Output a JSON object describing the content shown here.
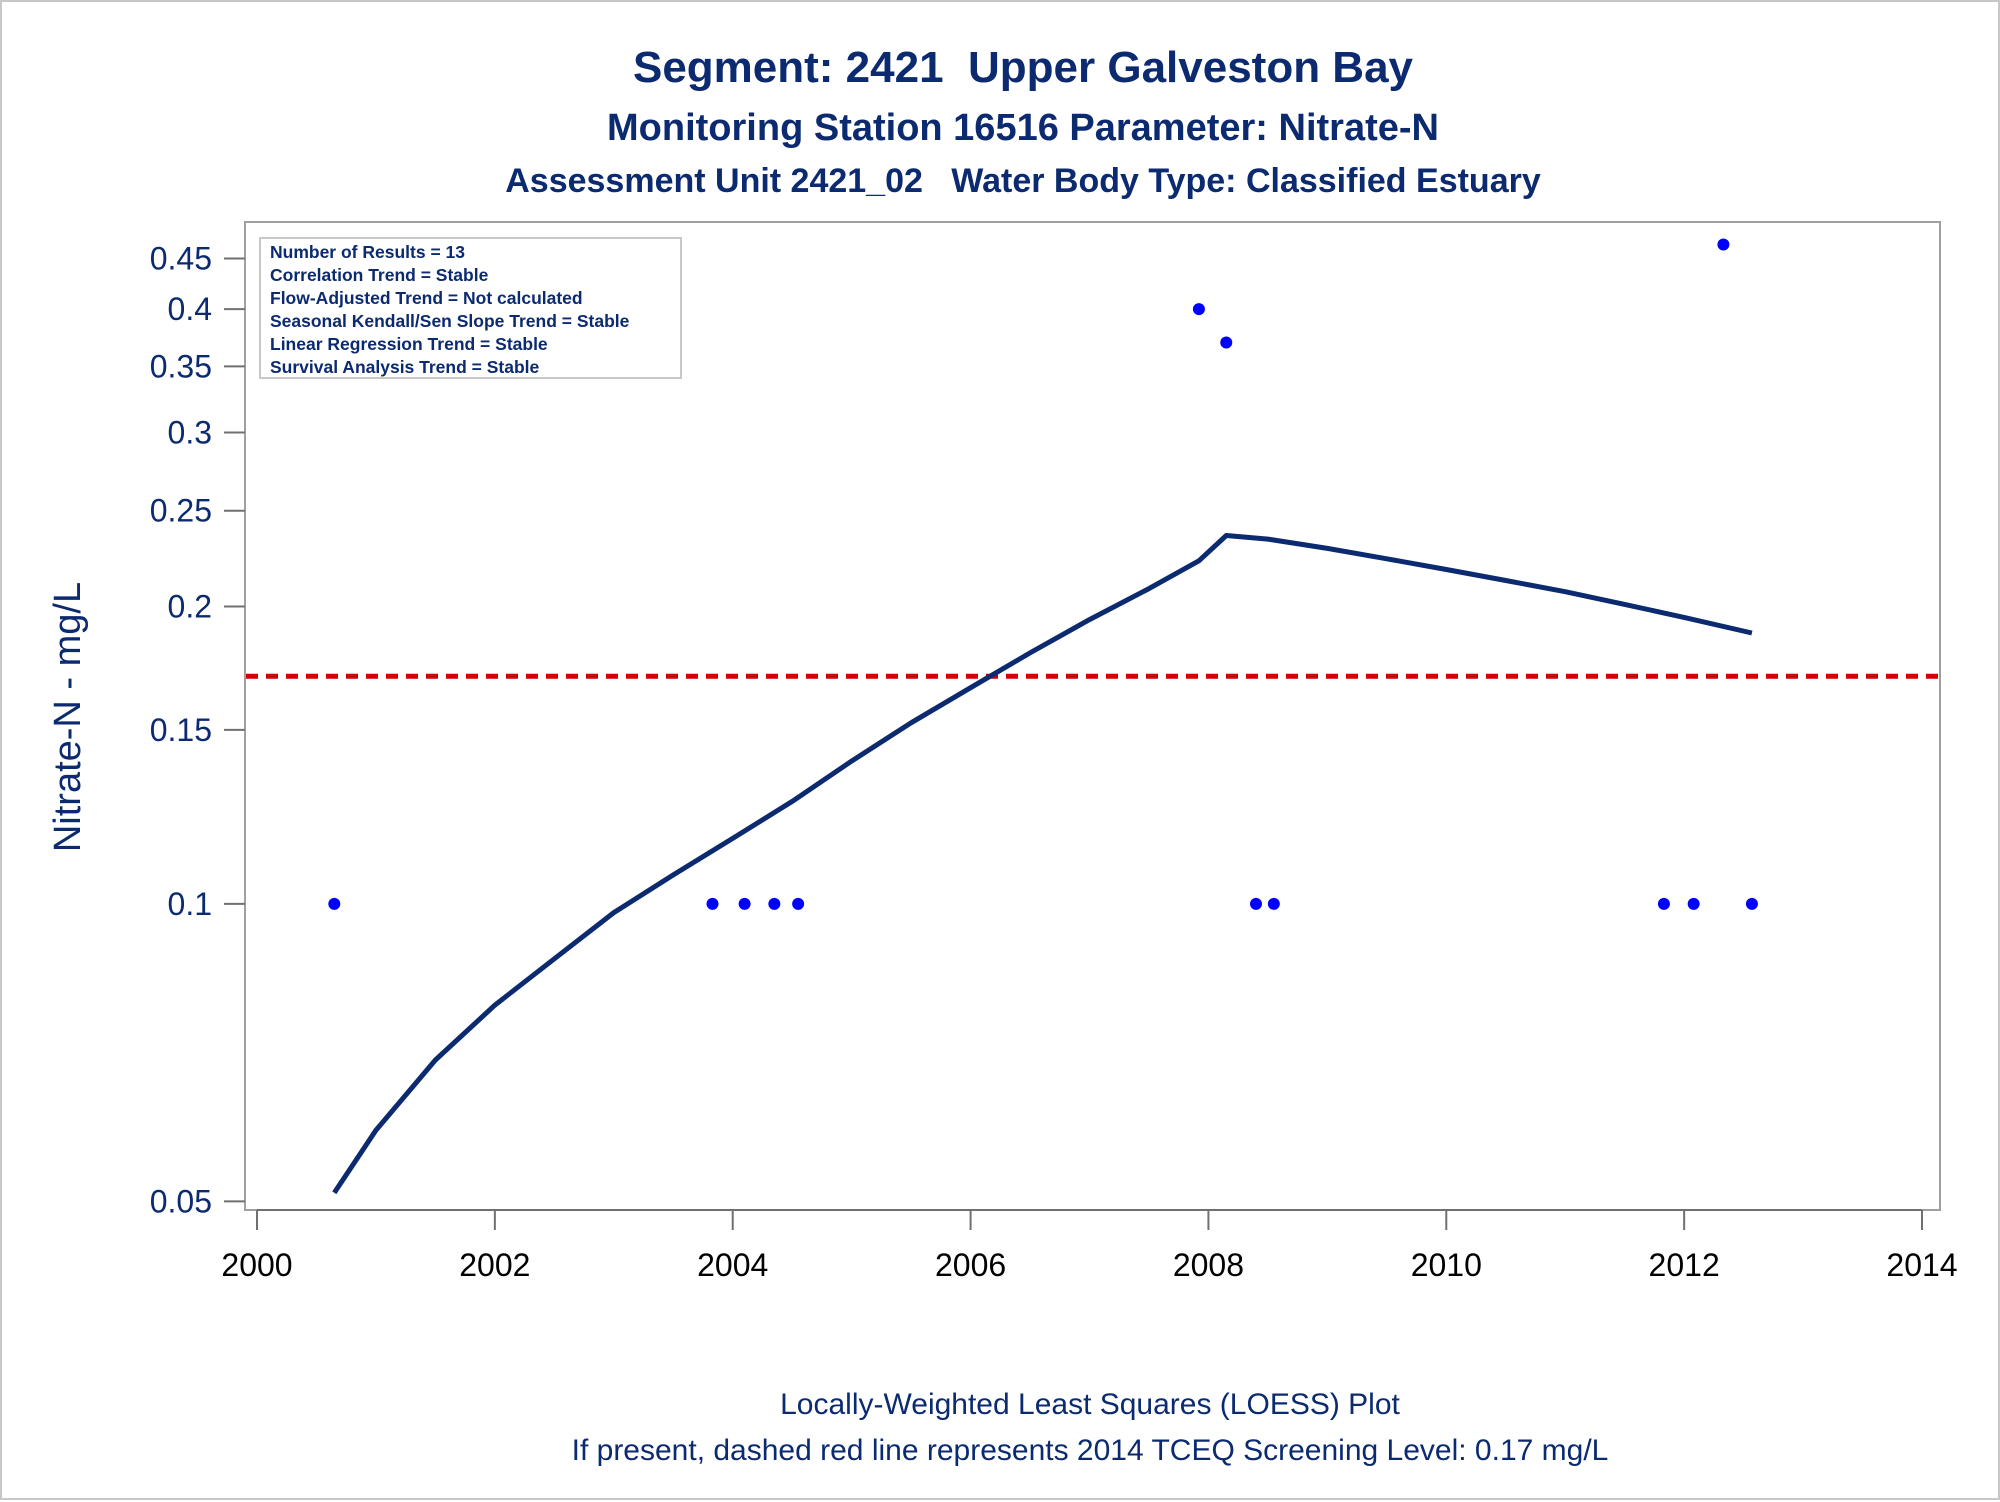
{
  "chart_data": {
    "type": "scatter",
    "title": "Segment: 2421  Upper Galveston Bay",
    "subtitle": "Monitoring Station 16516 Parameter: Nitrate-N",
    "subtitle2": "Assessment Unit 2421_02   Water Body Type: Classified Estuary",
    "xlabel": "",
    "ylabel": "Nitrate-N - mg/L",
    "footnote1": "Locally-Weighted Least Squares (LOESS) Plot",
    "footnote2": "If present, dashed red line represents 2014 TCEQ Screening Level: 0.17 mg/L",
    "xlim": [
      2000,
      2014
    ],
    "ylim": [
      0.049,
      0.49
    ],
    "y_scale": "log",
    "x_ticks": [
      2000,
      2002,
      2004,
      2006,
      2008,
      2010,
      2012,
      2014
    ],
    "x_tick_labels": [
      "2000",
      "2002",
      "2004",
      "2006",
      "2008",
      "2010",
      "2012",
      "2014"
    ],
    "y_ticks": [
      0.05,
      0.1,
      0.15,
      0.2,
      0.25,
      0.3,
      0.35,
      0.4,
      0.45
    ],
    "y_tick_labels": [
      "0.05",
      "0.1",
      "0.15",
      "0.2",
      "0.25",
      "0.3",
      "0.35",
      "0.4",
      "0.45"
    ],
    "grid": false,
    "points": {
      "x": [
        2000.65,
        2003.83,
        2004.1,
        2004.35,
        2004.55,
        2007.92,
        2008.15,
        2008.4,
        2008.55,
        2011.83,
        2012.08,
        2012.33,
        2012.57
      ],
      "y": [
        0.1,
        0.1,
        0.1,
        0.1,
        0.1,
        0.4,
        0.37,
        0.1,
        0.1,
        0.1,
        0.1,
        0.465,
        0.1
      ],
      "color": "#0000ff"
    },
    "loess_line": {
      "x": [
        2000.65,
        2001.0,
        2001.5,
        2002.0,
        2002.5,
        2003.0,
        2003.5,
        2004.0,
        2004.5,
        2005.0,
        2005.5,
        2006.0,
        2006.5,
        2007.0,
        2007.5,
        2007.92,
        2008.15,
        2008.5,
        2009.0,
        2009.5,
        2010.0,
        2010.5,
        2011.0,
        2011.5,
        2012.0,
        2012.57
      ],
      "y": [
        0.051,
        0.059,
        0.0695,
        0.079,
        0.088,
        0.098,
        0.107,
        0.1165,
        0.127,
        0.1395,
        0.1525,
        0.1655,
        0.1795,
        0.194,
        0.2085,
        0.2225,
        0.236,
        0.234,
        0.229,
        0.2235,
        0.218,
        0.2125,
        0.207,
        0.201,
        0.195,
        0.188
      ],
      "color": "#0b2a6f"
    },
    "screening_level": {
      "y": 0.17,
      "color": "#d40000",
      "style": "dashed"
    },
    "stats_box": {
      "placement": "top-left",
      "lines": [
        "Number of Results = 13",
        "Correlation Trend = Stable",
        "Flow-Adjusted Trend = Not calculated",
        "Seasonal Kendall/Sen Slope Trend = Stable",
        "Linear Regression Trend = Stable",
        "Survival Analysis Trend = Stable"
      ]
    }
  }
}
